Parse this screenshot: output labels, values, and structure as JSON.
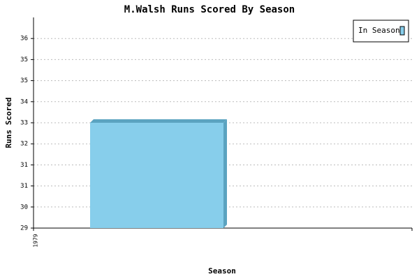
{
  "chart_data": {
    "type": "bar",
    "title": "M.Walsh Runs Scored By Season",
    "x_label": "Season",
    "y_label": "Runs Scored",
    "categories": [
      "1979"
    ],
    "series": [
      {
        "name": "In Season",
        "color": "#87ceeb",
        "values": [
          33
        ]
      }
    ],
    "ylim": [
      29,
      37
    ],
    "yticks": [
      29,
      {
        "value": 29.8,
        "label": "30"
      },
      {
        "value": 30.6,
        "label": "31"
      },
      {
        "value": 31.4,
        "label": "31"
      },
      {
        "value": 32.2,
        "label": "32"
      },
      33,
      {
        "value": 33.8,
        "label": "34"
      },
      {
        "value": 34.6,
        "label": "35"
      },
      {
        "value": 35.4,
        "label": "35"
      },
      {
        "value": 36.2,
        "label": "36"
      }
    ],
    "grid": true,
    "legend": "top-right"
  }
}
